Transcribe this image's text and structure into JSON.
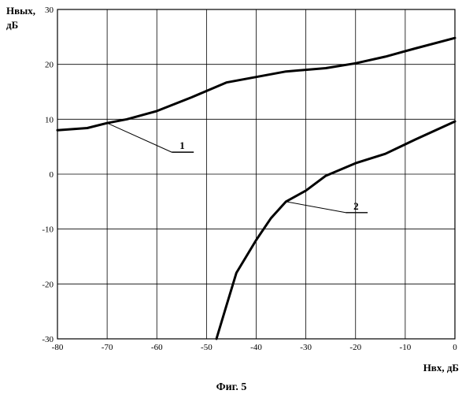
{
  "chart_data": {
    "type": "line",
    "title": "",
    "caption": "Фиг. 5",
    "ylabel_line1": "Hвых,",
    "ylabel_line2": "дБ",
    "xlabel": "Hвх, дБ",
    "xlim": [
      -80,
      0
    ],
    "ylim": [
      -30,
      30
    ],
    "xticks": [
      -80,
      -70,
      -60,
      -50,
      -40,
      -30,
      -20,
      -10,
      0
    ],
    "yticks": [
      -30,
      -20,
      -10,
      0,
      10,
      20,
      30
    ],
    "xtick_labels": [
      "-80",
      "-70",
      "-60",
      "-50",
      "-40",
      "-30",
      "-20",
      "-10",
      "0"
    ],
    "ytick_labels": [
      "-30",
      "-20",
      "-10",
      "0",
      "10",
      "20",
      "30"
    ],
    "grid": true,
    "series": [
      {
        "label": "1",
        "x": [
          -80,
          -74,
          -70,
          -66,
          -60,
          -53,
          -46,
          -40,
          -34,
          -26,
          -20,
          -14,
          -8,
          0
        ],
        "y": [
          8,
          8.4,
          9.3,
          10,
          11.5,
          14,
          16.7,
          17.7,
          18.7,
          19.3,
          20.2,
          21.4,
          22.9,
          24.8
        ]
      },
      {
        "label": "2",
        "x": [
          -48,
          -46,
          -44,
          -40,
          -37,
          -34,
          -30,
          -26,
          -20,
          -14,
          -8,
          0
        ],
        "y": [
          -30,
          -24,
          -18,
          -12,
          -8,
          -5,
          -3,
          -0.3,
          2,
          3.7,
          6.3,
          9.6
        ]
      }
    ],
    "annotations": [
      {
        "text": "1",
        "point_x": -70,
        "point_y": 9.3,
        "label_x": -57,
        "label_y": 4
      },
      {
        "text": "2",
        "point_x": -34,
        "point_y": -5,
        "label_x": -22,
        "label_y": -7
      }
    ]
  }
}
